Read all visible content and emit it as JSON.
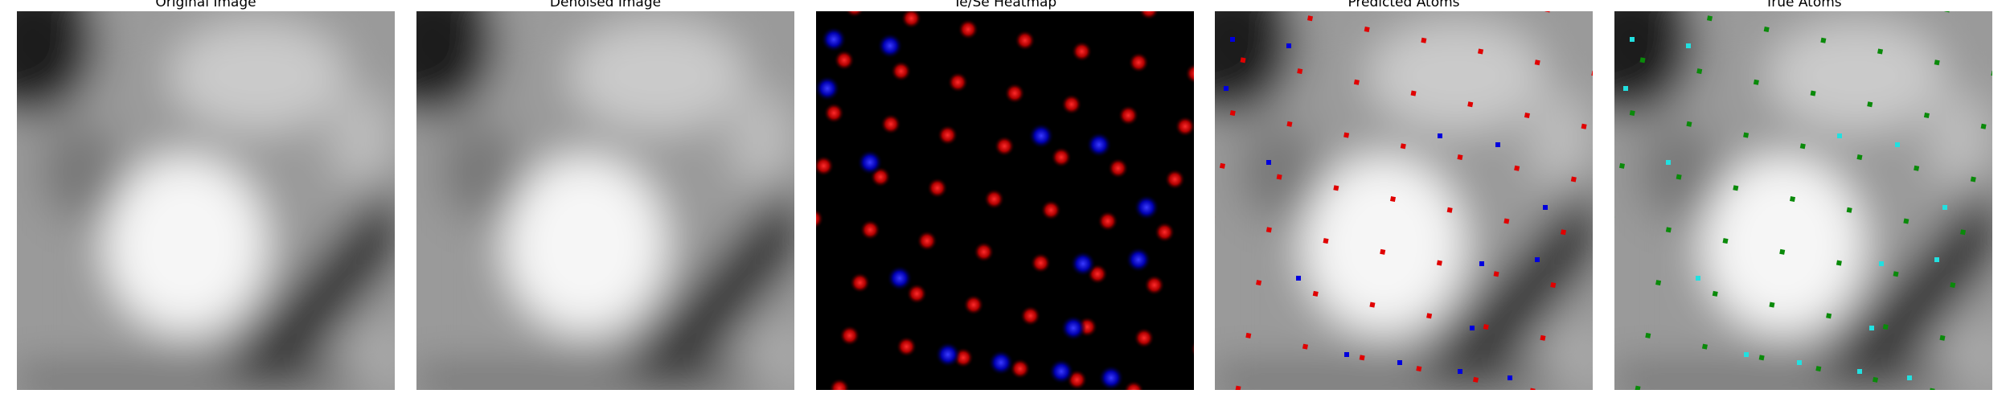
{
  "panels": [
    {
      "title": "Original Image"
    },
    {
      "title": "Denoised Image"
    },
    {
      "title": "Te/Se Heatmap"
    },
    {
      "title": "Predicted Atoms"
    },
    {
      "title": "True Atoms"
    }
  ]
}
